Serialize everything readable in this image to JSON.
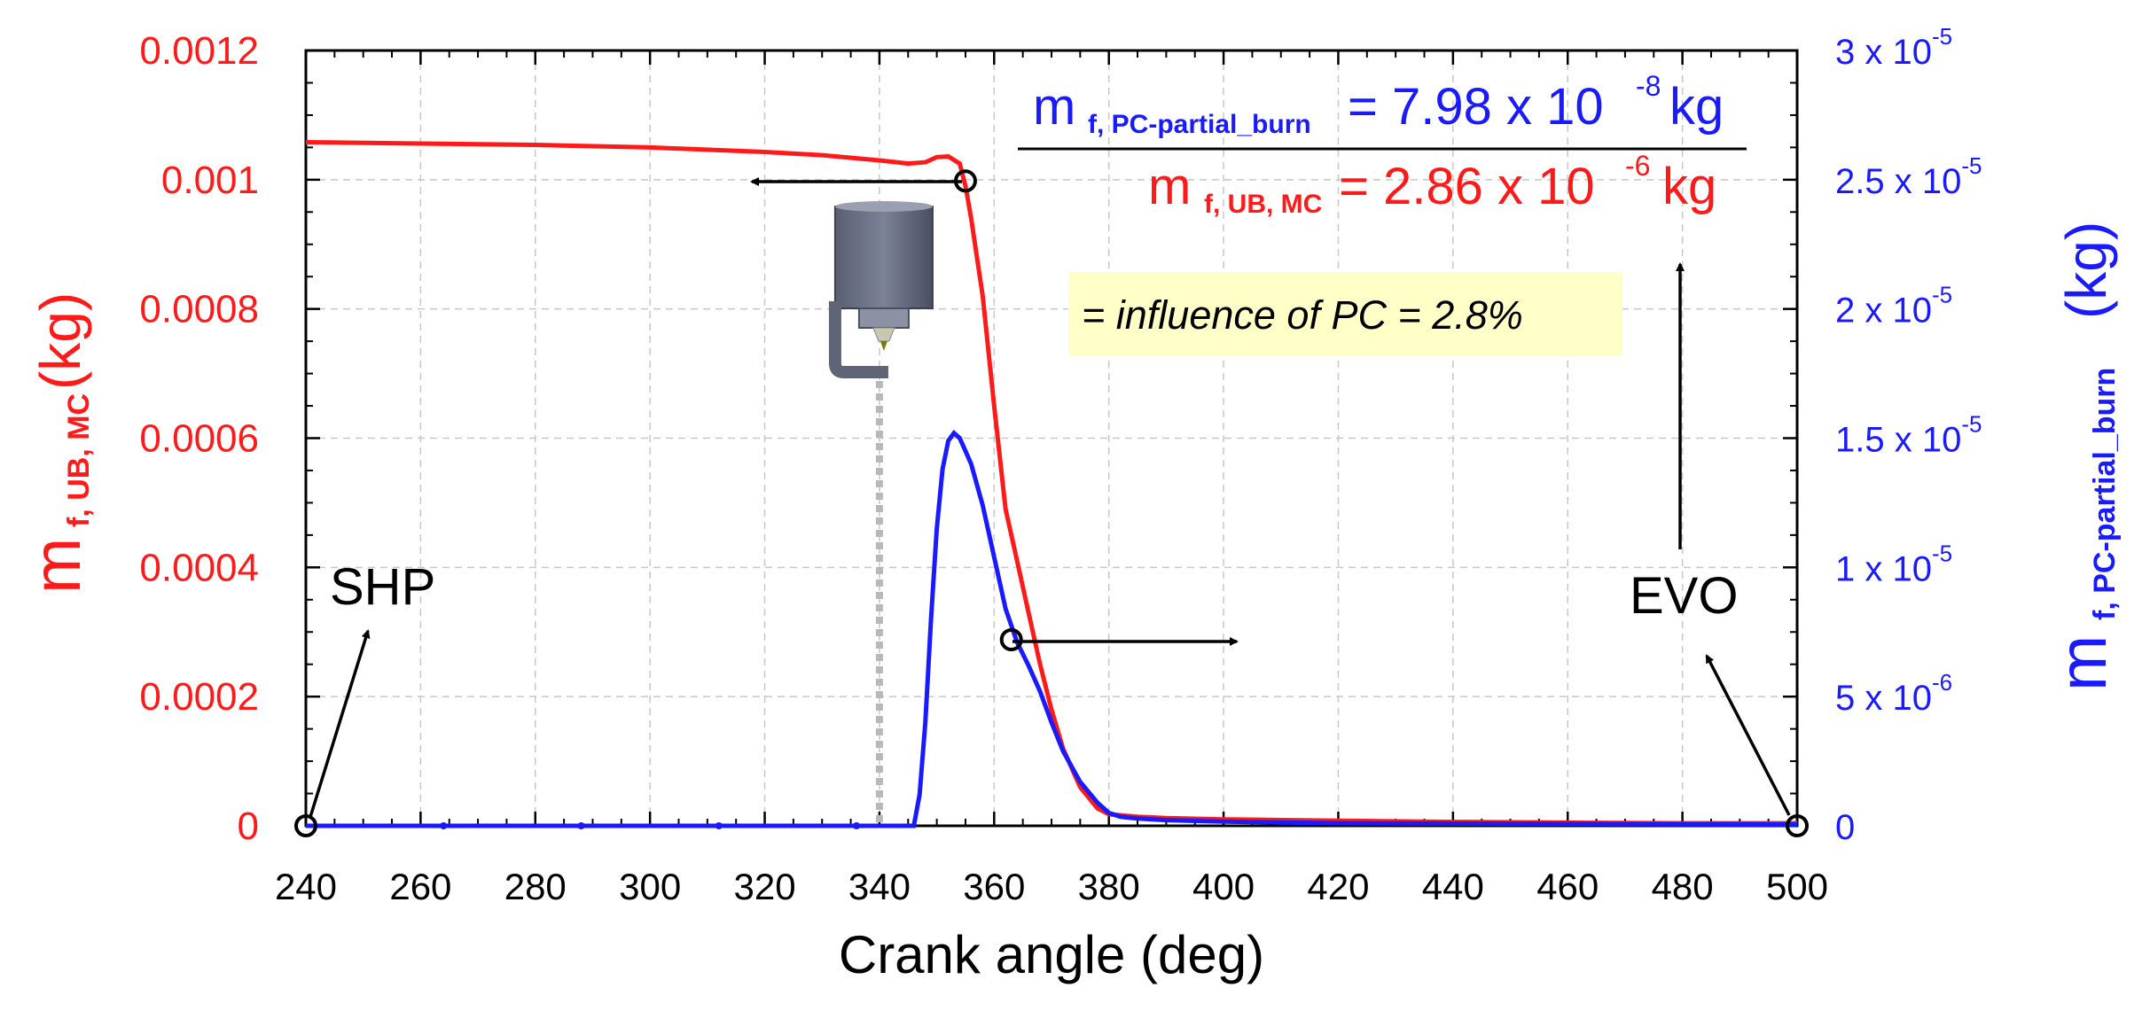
{
  "chart_data": {
    "type": "line",
    "xlabel": "Crank angle (deg)",
    "xlim": [
      240,
      500
    ],
    "x_ticks": [
      "240",
      "260",
      "280",
      "300",
      "320",
      "340",
      "360",
      "380",
      "400",
      "420",
      "440",
      "460",
      "480",
      "500"
    ],
    "y_left": {
      "label_main": "m",
      "label_sub": "f, UB, MC",
      "label_unit": "(kg)",
      "color": "#ff1a1a",
      "ylim": [
        0,
        0.0012
      ],
      "ticks": [
        "0",
        "0.0002",
        "0.0004",
        "0.0006",
        "0.0008",
        "0.001",
        "0.0012"
      ]
    },
    "y_right": {
      "label_main": "m",
      "label_sub": "f, PC-partial_burn",
      "label_unit": "(kg)",
      "color": "#1a1aff",
      "ylim": [
        0,
        3e-05
      ],
      "ticks": [
        {
          "value": 0,
          "mant": "0",
          "exp": ""
        },
        {
          "value": 5e-06,
          "mant": "5 x 10",
          "exp": "-6"
        },
        {
          "value": 1e-05,
          "mant": "1 x 10",
          "exp": "-5"
        },
        {
          "value": 1.5e-05,
          "mant": "1.5 x 10",
          "exp": "-5"
        },
        {
          "value": 2e-05,
          "mant": "2 x 10",
          "exp": "-5"
        },
        {
          "value": 2.5e-05,
          "mant": "2.5 x 10",
          "exp": "-5"
        },
        {
          "value": 3e-05,
          "mant": "3 x 10",
          "exp": "-5"
        }
      ]
    },
    "series": [
      {
        "name": "m f, UB, MC",
        "axis": "left",
        "color": "#ff1a1a",
        "x": [
          240,
          260,
          280,
          300,
          320,
          330,
          340,
          345,
          348,
          350,
          352,
          354,
          355,
          356,
          358,
          360,
          362,
          364,
          366,
          368,
          370,
          372,
          375,
          378,
          380,
          385,
          390,
          400,
          420,
          440,
          460,
          480,
          500
        ],
        "y": [
          0.001058,
          0.001056,
          0.001054,
          0.00105,
          0.001043,
          0.001038,
          0.00103,
          0.001025,
          0.001027,
          0.001035,
          0.001036,
          0.001025,
          0.00099,
          0.00094,
          0.00082,
          0.00065,
          0.00049,
          0.00041,
          0.00033,
          0.00025,
          0.00018,
          0.00012,
          6e-05,
          2.7e-05,
          1.8e-05,
          1.4e-05,
          1.2e-05,
          1e-05,
          8e-06,
          6e-06,
          5e-06,
          4e-06,
          4e-06
        ]
      },
      {
        "name": "m f, PC-partial_burn",
        "axis": "right",
        "color": "#1a1aff",
        "x": [
          240,
          264,
          288,
          312,
          336,
          340,
          344,
          346,
          347,
          348,
          349,
          350,
          351,
          352,
          353,
          354,
          355,
          356,
          358,
          360,
          362,
          364,
          366,
          368,
          370,
          372,
          375,
          378,
          380,
          382,
          385,
          390,
          400,
          420,
          450,
          480,
          500
        ],
        "y": [
          0,
          0,
          0,
          0,
          0,
          0,
          0,
          0,
          1.2e-06,
          4e-06,
          8e-06,
          1.15e-05,
          1.38e-05,
          1.49e-05,
          1.52e-05,
          1.5e-05,
          1.45e-05,
          1.4e-05,
          1.24e-05,
          1.04e-05,
          8.4e-06,
          7.1e-06,
          6.2e-06,
          5.2e-06,
          4e-06,
          2.9e-06,
          1.7e-06,
          9e-07,
          5e-07,
          3.5e-07,
          2.8e-07,
          2.2e-07,
          1.6e-07,
          1e-07,
          8e-08,
          6e-08,
          5e-08
        ]
      }
    ],
    "markers": [
      {
        "name": "shp-marker",
        "x": 240,
        "y": 0,
        "axis": "left"
      },
      {
        "name": "evo-marker",
        "x": 500,
        "y": 0,
        "axis": "left"
      },
      {
        "name": "red-curve-marker",
        "x": 355,
        "y": 0.000998,
        "axis": "left"
      },
      {
        "name": "blue-curve-marker",
        "x": 363,
        "y": 7.2e-06,
        "axis": "right"
      }
    ],
    "spark_plug_position": 340,
    "annotations": {
      "shp": "SHP",
      "evo": "EVO",
      "influence": "= influence of PC = 2.8%",
      "numerator_m": "m",
      "numerator_sub": "f, PC-partial_burn",
      "numerator_value": "= 7.98 x 10",
      "numerator_exp": "-8",
      "numerator_unit": "kg",
      "denominator_m": "m",
      "denominator_sub": "f, UB, MC",
      "denominator_value": "= 2.86 x 10",
      "denominator_exp": "-6",
      "denominator_unit": "kg"
    }
  }
}
